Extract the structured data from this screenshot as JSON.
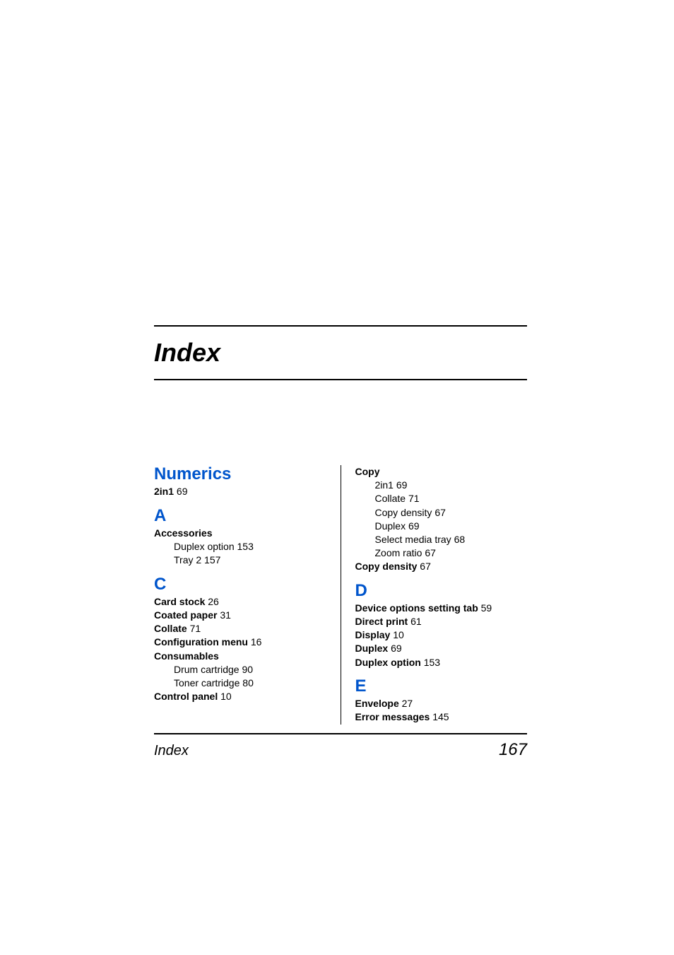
{
  "title": "Index",
  "footer": {
    "label": "Index",
    "page": "167"
  },
  "columns": {
    "left": {
      "sections": [
        {
          "heading": "Numerics",
          "entries": [
            {
              "term": "2in1",
              "page": "69",
              "subs": []
            }
          ]
        },
        {
          "heading": "A",
          "entries": [
            {
              "term": "Accessories",
              "page": "",
              "subs": [
                {
                  "label": "Duplex option",
                  "page": "153"
                },
                {
                  "label": "Tray 2",
                  "page": "157"
                }
              ]
            }
          ]
        },
        {
          "heading": "C",
          "entries": [
            {
              "term": "Card stock",
              "page": "26",
              "subs": []
            },
            {
              "term": "Coated paper",
              "page": "31",
              "subs": []
            },
            {
              "term": "Collate",
              "page": "71",
              "subs": []
            },
            {
              "term": "Configuration menu",
              "page": "16",
              "subs": []
            },
            {
              "term": "Consumables",
              "page": "",
              "subs": [
                {
                  "label": "Drum cartridge",
                  "page": "90"
                },
                {
                  "label": "Toner cartridge",
                  "page": "80"
                }
              ]
            },
            {
              "term": "Control panel",
              "page": "10",
              "subs": []
            }
          ]
        }
      ]
    },
    "right": {
      "pre_entries": [
        {
          "term": "Copy",
          "page": "",
          "subs": [
            {
              "label": "2in1",
              "page": "69"
            },
            {
              "label": "Collate",
              "page": "71"
            },
            {
              "label": "Copy density",
              "page": "67"
            },
            {
              "label": "Duplex",
              "page": "69"
            },
            {
              "label": "Select media tray",
              "page": "68"
            },
            {
              "label": "Zoom ratio",
              "page": "67"
            }
          ]
        },
        {
          "term": "Copy density",
          "page": "67",
          "subs": []
        }
      ],
      "sections": [
        {
          "heading": "D",
          "entries": [
            {
              "term": "Device options setting tab",
              "page": "59",
              "subs": []
            },
            {
              "term": "Direct print",
              "page": "61",
              "subs": []
            },
            {
              "term": "Display",
              "page": "10",
              "subs": []
            },
            {
              "term": "Duplex",
              "page": "69",
              "subs": []
            },
            {
              "term": "Duplex option",
              "page": "153",
              "subs": []
            }
          ]
        },
        {
          "heading": "E",
          "entries": [
            {
              "term": "Envelope",
              "page": "27",
              "subs": []
            },
            {
              "term": "Error messages",
              "page": "145",
              "subs": []
            }
          ]
        }
      ]
    }
  },
  "colors": {
    "heading": "#0055cc",
    "text": "#000000",
    "background": "#ffffff",
    "rule": "#000000"
  },
  "typography": {
    "title_fontsize": 36,
    "heading_fontsize": 24,
    "entry_fontsize": 14,
    "footer_label_fontsize": 20,
    "footer_page_fontsize": 24
  }
}
